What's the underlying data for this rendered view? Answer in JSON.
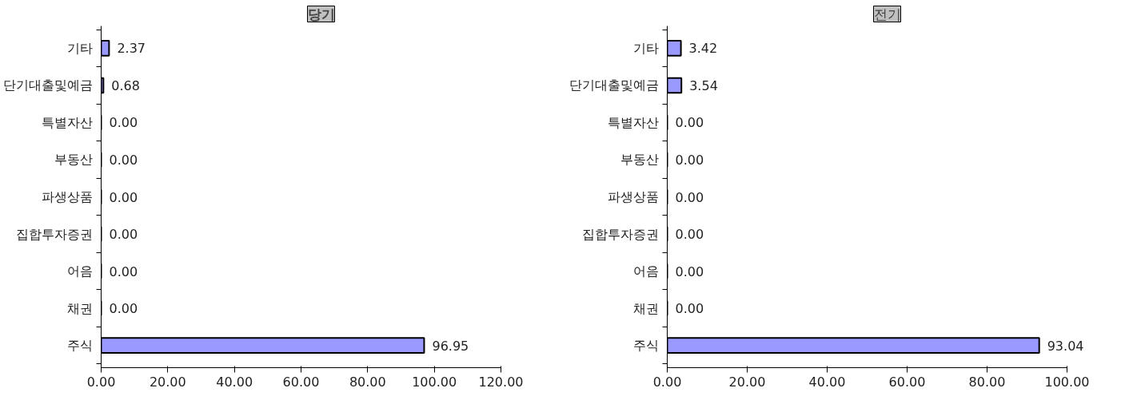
{
  "chart_data": [
    {
      "type": "bar",
      "orientation": "horizontal",
      "title": "당기",
      "categories": [
        "기타",
        "단기대출및예금",
        "특별자산",
        "부동산",
        "파생상품",
        "집합투자증권",
        "어음",
        "채권",
        "주식"
      ],
      "values": [
        2.37,
        0.68,
        0,
        0,
        0,
        0,
        0,
        0,
        96.95
      ],
      "value_labels": [
        "2.37",
        "0.68",
        "0.00",
        "0.00",
        "0.00",
        "0.00",
        "0.00",
        "0.00",
        "96.95"
      ],
      "colors": [
        "#9999ff",
        "#9999ff",
        "#9999ff",
        "#9999ff",
        "#9999ff",
        "#9999ff",
        "#9999ff",
        "#9999ff",
        "#9999ff"
      ],
      "xlim": [
        0,
        120
      ],
      "xticks": [
        {
          "value": 0,
          "label": "0.00"
        },
        {
          "value": 20,
          "label": "20.00"
        },
        {
          "value": 40,
          "label": "40.00"
        },
        {
          "value": 60,
          "label": "60.00"
        },
        {
          "value": 80,
          "label": "80.00"
        },
        {
          "value": 100,
          "label": "100.00"
        },
        {
          "value": 120,
          "label": "120.00"
        }
      ],
      "grid": false
    },
    {
      "type": "bar",
      "orientation": "horizontal",
      "title": "전기",
      "categories": [
        "기타",
        "단기대출및예금",
        "특별자산",
        "부동산",
        "파생상품",
        "집합투자증권",
        "어음",
        "채권",
        "주식"
      ],
      "values": [
        3.42,
        3.54,
        0,
        0,
        0,
        0,
        0,
        0,
        93.04
      ],
      "value_labels": [
        "3.42",
        "3.54",
        "0.00",
        "0.00",
        "0.00",
        "0.00",
        "0.00",
        "0.00",
        "93.04"
      ],
      "colors": [
        "#9999ff",
        "#9999ff",
        "#9999ff",
        "#9999ff",
        "#9999ff",
        "#9999ff",
        "#9999ff",
        "#9999ff",
        "#9999ff"
      ],
      "xlim": [
        0,
        100
      ],
      "xticks": [
        {
          "value": 0,
          "label": "0.00"
        },
        {
          "value": 20,
          "label": "20.00"
        },
        {
          "value": 40,
          "label": "40.00"
        },
        {
          "value": 60,
          "label": "60.00"
        },
        {
          "value": 80,
          "label": "80.00"
        },
        {
          "value": 100,
          "label": "100.00"
        }
      ],
      "grid": false
    }
  ]
}
